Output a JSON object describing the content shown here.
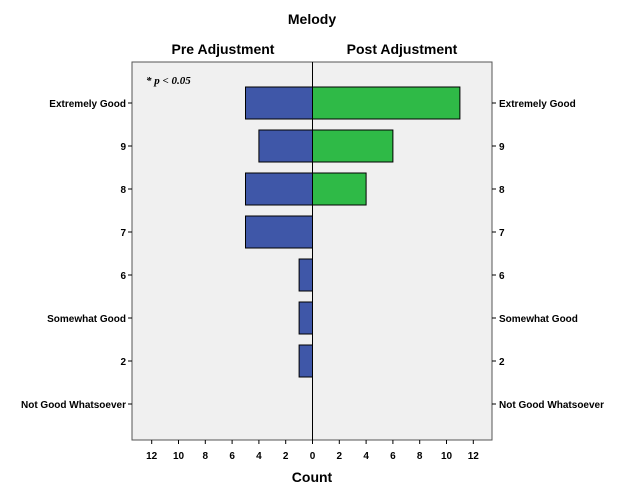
{
  "chart_data": {
    "type": "bar",
    "orientation": "horizontal-butterfly",
    "title": "Melody",
    "xlabel": "Count",
    "annotation": "* p < 0.05",
    "categories": [
      "Extremely Good",
      "9",
      "8",
      "7",
      "6",
      "Somewhat Good",
      "2",
      "Not Good Whatsoever"
    ],
    "series": [
      {
        "name": "Pre Adjustment",
        "side": "left",
        "color": "#3f57a8",
        "values": [
          5,
          4,
          5,
          5,
          1,
          1,
          1,
          0
        ]
      },
      {
        "name": "Post Adjustment",
        "side": "right",
        "color": "#2fba47",
        "values": [
          11,
          6,
          4,
          0,
          0,
          0,
          0,
          0
        ]
      }
    ],
    "xlim": [
      0,
      13
    ],
    "ticks": [
      0,
      2,
      4,
      6,
      8,
      10,
      12
    ],
    "grid": false,
    "legend": "panel-titles-top"
  }
}
